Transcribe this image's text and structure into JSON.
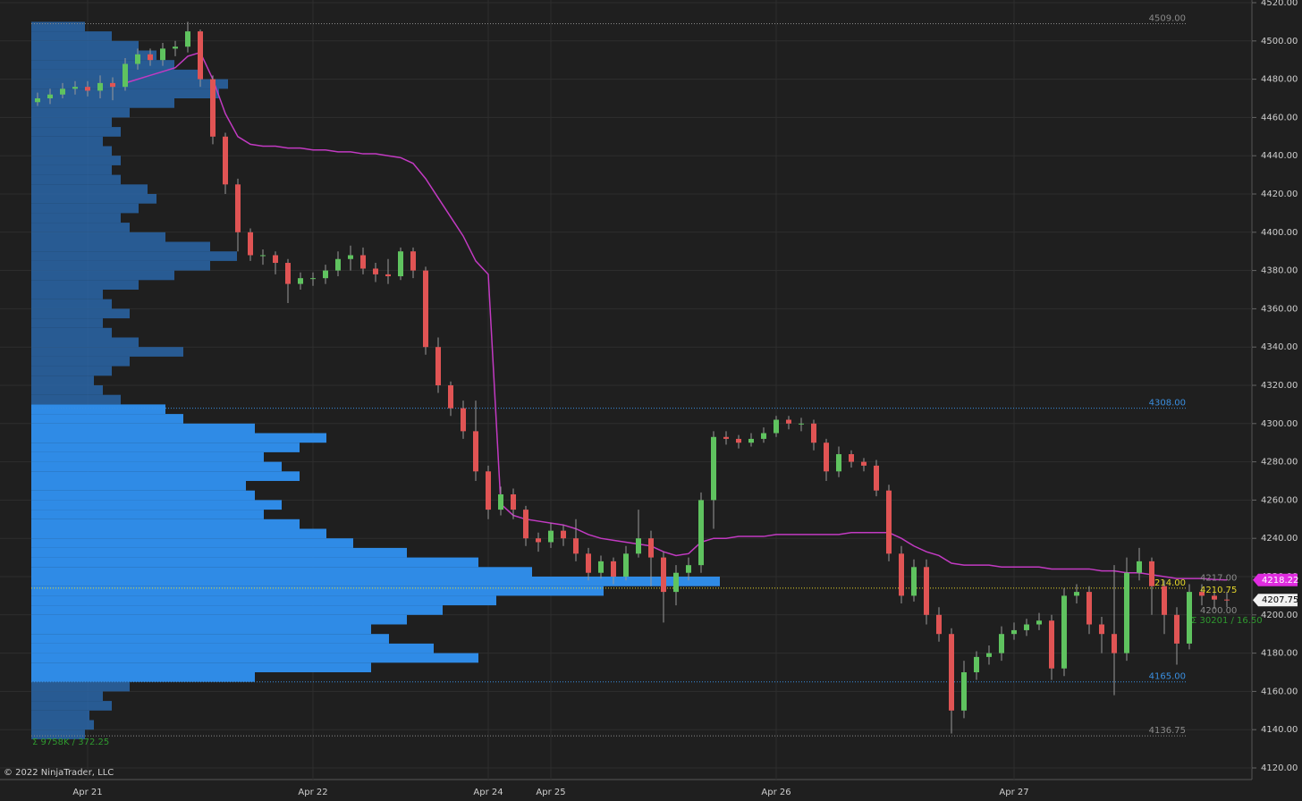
{
  "chart_data": {
    "type": "candlestick",
    "copyright": "© 2022 NinjaTrader, LLC",
    "up_color": "#5fc35f",
    "down_color": "#e05454",
    "wick_color": "#9a9a9a",
    "vwap_color": "#c23ac2",
    "profile_color": "#2f8be6",
    "profile_outer_color": "#2a66a8",
    "ylim": [
      4120,
      4520
    ],
    "yticks": [
      {
        "value": 4120,
        "label": "4120.00"
      },
      {
        "value": 4140,
        "label": "4140.00"
      },
      {
        "value": 4160,
        "label": "4160.00"
      },
      {
        "value": 4180,
        "label": "4180.00"
      },
      {
        "value": 4200,
        "label": "4200.00"
      },
      {
        "value": 4220,
        "label": "4220.00"
      },
      {
        "value": 4240,
        "label": "4240.00"
      },
      {
        "value": 4260,
        "label": "4260.00"
      },
      {
        "value": 4280,
        "label": "4280.00"
      },
      {
        "value": 4300,
        "label": "4300.00"
      },
      {
        "value": 4320,
        "label": "4320.00"
      },
      {
        "value": 4340,
        "label": "4340.00"
      },
      {
        "value": 4360,
        "label": "4360.00"
      },
      {
        "value": 4380,
        "label": "4380.00"
      },
      {
        "value": 4400,
        "label": "4400.00"
      },
      {
        "value": 4420,
        "label": "4420.00"
      },
      {
        "value": 4440,
        "label": "4440.00"
      },
      {
        "value": 4460,
        "label": "4460.00"
      },
      {
        "value": 4480,
        "label": "4480.00"
      },
      {
        "value": 4500,
        "label": "4500.00"
      },
      {
        "value": 4520,
        "label": "4520.00"
      }
    ],
    "grid": true,
    "categories": [
      null,
      null,
      null,
      null,
      "Apr 21",
      null,
      null,
      null,
      null,
      null,
      null,
      null,
      null,
      null,
      null,
      null,
      null,
      null,
      null,
      null,
      null,
      null,
      "Apr 22",
      null,
      null,
      null,
      null,
      null,
      null,
      null,
      null,
      null,
      null,
      null,
      null,
      null,
      "Apr 24",
      null,
      null,
      null,
      null,
      "Apr 25",
      null,
      null,
      null,
      null,
      null,
      null,
      null,
      null,
      null,
      null,
      null,
      null,
      null,
      null,
      null,
      null,
      null,
      "Apr 26",
      null,
      null,
      null,
      null,
      null,
      null,
      null,
      null,
      null,
      null,
      null,
      null,
      null,
      null,
      null,
      null,
      null,
      null,
      "Apr 27",
      null,
      null,
      null,
      null,
      null,
      null,
      null,
      null,
      null,
      null,
      null,
      null,
      null,
      null,
      null,
      null,
      null
    ],
    "open": [
      4468,
      4470,
      4472,
      4475,
      4476,
      4474,
      4478,
      4476,
      4488,
      4493,
      4490,
      4496,
      4497,
      4505,
      4480,
      4450,
      4425,
      4400,
      4388,
      4388,
      4384,
      4373,
      4376,
      4376,
      4380,
      4386,
      4388,
      4381,
      4378,
      4377,
      4390,
      4380,
      4340,
      4320,
      4308,
      4296,
      4275,
      4255,
      4263,
      4255,
      4240,
      4238,
      4244,
      4240,
      4232,
      4222,
      4228,
      4220,
      4232,
      4240,
      4230,
      4212,
      4222,
      4226,
      4260,
      4293,
      4292,
      4290,
      4292,
      4295,
      4302,
      4300,
      4300,
      4290,
      4275,
      4284,
      4280,
      4278,
      4265,
      4232,
      4210,
      4225,
      4200,
      4190,
      4150,
      4170,
      4178,
      4180,
      4190,
      4192,
      4195,
      4197,
      4172,
      4210,
      4212,
      4195,
      4190,
      4180,
      4222,
      4228,
      4215,
      4200,
      4185,
      4212,
      4210,
      4208
    ],
    "high": [
      4473,
      4475,
      4478,
      4479,
      4479,
      4482,
      4481,
      4491,
      4496,
      4496,
      4499,
      4500,
      4510,
      4506,
      4482,
      4452,
      4428,
      4402,
      4391,
      4390,
      4386,
      4379,
      4379,
      4383,
      4390,
      4393,
      4392,
      4384,
      4386,
      4392,
      4392,
      4382,
      4345,
      4322,
      4312,
      4312,
      4278,
      4267,
      4266,
      4257,
      4243,
      4248,
      4247,
      4250,
      4235,
      4231,
      4230,
      4236,
      4255,
      4244,
      4233,
      4226,
      4230,
      4264,
      4296,
      4296,
      4294,
      4295,
      4298,
      4304,
      4304,
      4303,
      4302,
      4292,
      4288,
      4286,
      4282,
      4281,
      4268,
      4236,
      4229,
      4229,
      4204,
      4193,
      4176,
      4181,
      4184,
      4194,
      4196,
      4198,
      4201,
      4200,
      4214,
      4216,
      4215,
      4199,
      4226,
      4230,
      4235,
      4230,
      4218,
      4204,
      4216,
      4216,
      4213,
      4212
    ],
    "low": [
      4466,
      4467,
      4470,
      4472,
      4471,
      4470,
      4469,
      4474,
      4485,
      4487,
      4487,
      4492,
      4494,
      4476,
      4446,
      4420,
      4390,
      4385,
      4383,
      4378,
      4363,
      4370,
      4372,
      4373,
      4377,
      4380,
      4378,
      4374,
      4373,
      4375,
      4376,
      4336,
      4316,
      4304,
      4292,
      4270,
      4250,
      4252,
      4250,
      4236,
      4233,
      4235,
      4236,
      4228,
      4218,
      4219,
      4216,
      4218,
      4230,
      4215,
      4196,
      4205,
      4218,
      4222,
      4245,
      4289,
      4287,
      4288,
      4290,
      4293,
      4297,
      4296,
      4286,
      4270,
      4272,
      4277,
      4275,
      4262,
      4228,
      4206,
      4207,
      4195,
      4186,
      4138,
      4146,
      4166,
      4174,
      4176,
      4187,
      4189,
      4192,
      4166,
      4168,
      4206,
      4190,
      4180,
      4158,
      4176,
      4218,
      4200,
      4190,
      4174,
      4182,
      4205,
      4203,
      4204
    ],
    "close": [
      4470,
      4472,
      4475,
      4476,
      4474,
      4478,
      4476,
      4488,
      4493,
      4490,
      4496,
      4497,
      4505,
      4480,
      4450,
      4425,
      4400,
      4388,
      4388,
      4384,
      4373,
      4376,
      4376,
      4380,
      4386,
      4388,
      4381,
      4378,
      4377,
      4390,
      4380,
      4340,
      4320,
      4308,
      4296,
      4275,
      4255,
      4263,
      4255,
      4240,
      4238,
      4244,
      4240,
      4232,
      4222,
      4228,
      4220,
      4232,
      4240,
      4230,
      4212,
      4222,
      4226,
      4260,
      4293,
      4292,
      4290,
      4292,
      4295,
      4302,
      4300,
      4300,
      4290,
      4275,
      4284,
      4280,
      4278,
      4265,
      4232,
      4210,
      4225,
      4200,
      4190,
      4150,
      4170,
      4178,
      4180,
      4190,
      4192,
      4195,
      4197,
      4172,
      4210,
      4212,
      4195,
      4190,
      4180,
      4222,
      4228,
      4215,
      4200,
      4185,
      4212,
      4210,
      4208,
      4207.75
    ],
    "vwap": [
      null,
      null,
      null,
      null,
      null,
      null,
      null,
      4478,
      4480,
      4482,
      4484,
      4486,
      4492,
      4494,
      4480,
      4462,
      4450,
      4446,
      4445,
      4445,
      4444,
      4444,
      4443,
      4443,
      4442,
      4442,
      4441,
      4441,
      4440,
      4439,
      4436,
      4428,
      4418,
      4408,
      4398,
      4385,
      4378,
      4258,
      4252,
      4250,
      4249,
      4248,
      4247,
      4245,
      4242,
      4240,
      4239,
      4238,
      4237,
      4236,
      4233,
      4231,
      4232,
      4238,
      4240,
      4240,
      4241,
      4241,
      4241,
      4242,
      4242,
      4242,
      4242,
      4242,
      4242,
      4243,
      4243,
      4243,
      4243,
      4240,
      4236,
      4233,
      4231,
      4227,
      4226,
      4226,
      4226,
      4225,
      4225,
      4225,
      4225,
      4224,
      4224,
      4224,
      4224,
      4223,
      4223,
      4222,
      4222,
      4221,
      4220,
      4219,
      4219,
      4219,
      4218.5,
      4218.22
    ],
    "profile": {
      "bins": [
        4135,
        4140,
        4145,
        4150,
        4155,
        4160,
        4165,
        4170,
        4175,
        4180,
        4185,
        4190,
        4195,
        4200,
        4205,
        4210,
        4215,
        4220,
        4225,
        4230,
        4235,
        4240,
        4245,
        4250,
        4255,
        4260,
        4265,
        4270,
        4275,
        4280,
        4285,
        4290,
        4295,
        4300,
        4305,
        4310,
        4315,
        4320,
        4325,
        4330,
        4335,
        4340,
        4345,
        4350,
        4355,
        4360,
        4365,
        4370,
        4375,
        4380,
        4385,
        4390,
        4395,
        4400,
        4405,
        4410,
        4415,
        4420,
        4425,
        4430,
        4435,
        4440,
        4445,
        4450,
        4455,
        4460,
        4465,
        4470,
        4475,
        4480,
        4485,
        4490,
        4495,
        4500,
        4505,
        4510
      ],
      "values": [
        60,
        70,
        65,
        90,
        80,
        110,
        250,
        380,
        500,
        450,
        400,
        380,
        420,
        460,
        520,
        640,
        770,
        560,
        500,
        420,
        360,
        330,
        300,
        260,
        280,
        250,
        240,
        300,
        280,
        260,
        300,
        330,
        250,
        170,
        150,
        100,
        80,
        70,
        90,
        110,
        170,
        120,
        90,
        80,
        110,
        90,
        80,
        120,
        160,
        200,
        230,
        200,
        150,
        110,
        100,
        120,
        140,
        130,
        100,
        90,
        100,
        90,
        80,
        100,
        90,
        110,
        160,
        210,
        220,
        190,
        160,
        140,
        120,
        90,
        60
      ]
    },
    "levels": [
      {
        "value": 4509,
        "label": "4509.00",
        "color": "#8a8a8a"
      },
      {
        "value": 4308,
        "label": "4308.00",
        "color": "#3a8fe0"
      },
      {
        "value": 4165,
        "label": "4165.00",
        "color": "#3a8fe0"
      },
      {
        "value": 4136.75,
        "label": "4136.75",
        "color": "#8a8a8a"
      },
      {
        "value": 4214,
        "label": "4214.00",
        "color": "#e6d82a"
      }
    ],
    "end_labels": [
      {
        "value": 4217,
        "label": "4217.00",
        "color": "#8a8a8a"
      },
      {
        "value": 4210.75,
        "label": "4210.75",
        "color": "#e6d82a"
      },
      {
        "value": 4200,
        "label": "4200.00",
        "color": "#8a8a8a"
      }
    ],
    "price_tags": [
      {
        "value": 4218.22,
        "label": "4218.22",
        "color": "#e02ce0",
        "text_color": "#ffffff"
      },
      {
        "value": 4207.75,
        "label": "4207.75",
        "color": "#f2f2f2",
        "text_color": "#000000"
      }
    ],
    "annotations": [
      {
        "text": "Σ 9758K / 372.25",
        "color": "#2f9a2f"
      },
      {
        "text": "Σ 30201 / 16.50",
        "color": "#2f9a2f"
      }
    ]
  }
}
